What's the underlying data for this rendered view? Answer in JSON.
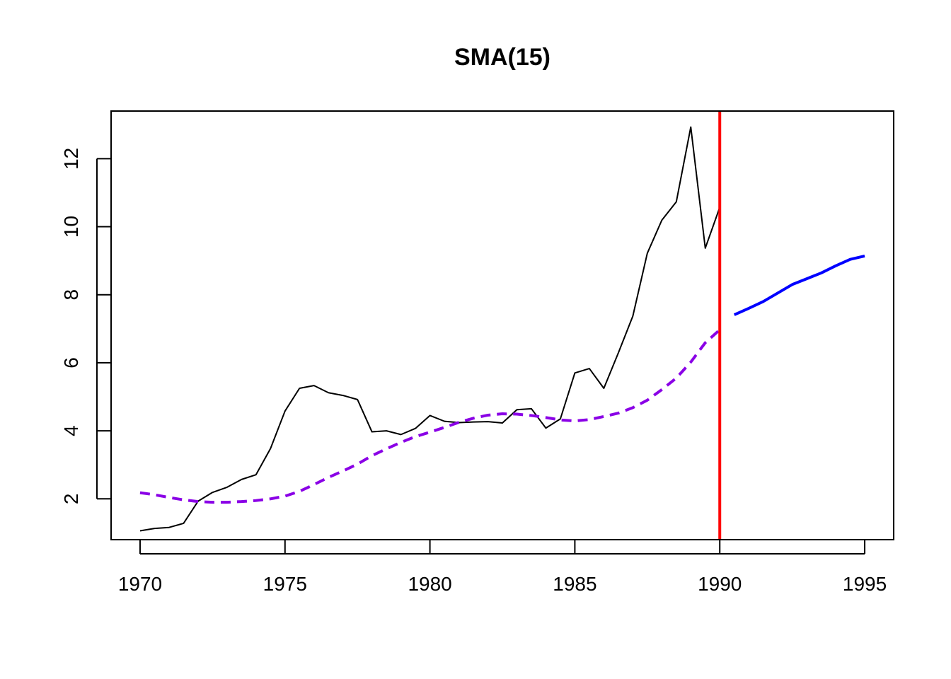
{
  "chart_data": {
    "type": "line",
    "title": "SMA(15)",
    "xlabel": "",
    "ylabel": "",
    "xlim": [
      1969,
      1996
    ],
    "ylim": [
      0.8,
      13.4
    ],
    "x_ticks": [
      1970,
      1975,
      1980,
      1985,
      1990,
      1995
    ],
    "y_ticks": [
      2,
      4,
      6,
      8,
      10,
      12
    ],
    "grid": false,
    "legend": "none",
    "vline": {
      "x": 1990,
      "color": "#ff0000"
    },
    "series": [
      {
        "style": "solid",
        "color": "#000000",
        "x": [
          1970,
          1970.5,
          1971,
          1971.5,
          1972,
          1972.5,
          1973,
          1973.5,
          1974,
          1974.5,
          1975,
          1975.5,
          1976,
          1976.5,
          1977,
          1977.5,
          1978,
          1978.5,
          1979,
          1979.5,
          1980,
          1980.5,
          1981,
          1981.5,
          1982,
          1982.5,
          1983,
          1983.5,
          1984,
          1984.5,
          1985,
          1985.5,
          1986,
          1986.5,
          1987,
          1987.5,
          1988,
          1988.5,
          1989,
          1989.5,
          1990
        ],
        "values": [
          1.06,
          1.13,
          1.16,
          1.28,
          1.93,
          2.19,
          2.34,
          2.57,
          2.71,
          3.48,
          4.58,
          5.25,
          5.33,
          5.12,
          5.04,
          4.92,
          3.97,
          4.0,
          3.89,
          4.07,
          4.45,
          4.28,
          4.24,
          4.26,
          4.27,
          4.23,
          4.62,
          4.65,
          4.08,
          4.35,
          5.7,
          5.83,
          5.25,
          6.29,
          7.37,
          9.22,
          10.19,
          10.73,
          12.93,
          9.37,
          10.57
        ]
      },
      {
        "style": "dashed",
        "color": "#8a00e6",
        "x": [
          1970,
          1970.5,
          1971,
          1971.5,
          1972,
          1972.5,
          1973,
          1973.5,
          1974,
          1974.5,
          1975,
          1975.5,
          1976,
          1976.5,
          1977,
          1977.5,
          1978,
          1978.5,
          1979,
          1979.5,
          1980,
          1980.5,
          1981,
          1981.5,
          1982,
          1982.5,
          1983,
          1983.5,
          1984,
          1984.5,
          1985,
          1985.5,
          1986,
          1986.5,
          1987,
          1987.5,
          1988,
          1988.5,
          1989,
          1989.5,
          1990
        ],
        "values": [
          2.18,
          2.12,
          2.04,
          1.97,
          1.92,
          1.9,
          1.9,
          1.92,
          1.95,
          2.0,
          2.08,
          2.22,
          2.42,
          2.63,
          2.82,
          3.02,
          3.27,
          3.47,
          3.66,
          3.83,
          3.96,
          4.1,
          4.25,
          4.37,
          4.46,
          4.5,
          4.49,
          4.45,
          4.39,
          4.32,
          4.29,
          4.33,
          4.42,
          4.52,
          4.68,
          4.9,
          5.21,
          5.55,
          6.02,
          6.59,
          6.97
        ]
      },
      {
        "style": "solid-thick",
        "color": "#0000ff",
        "x": [
          1990.5,
          1991,
          1991.5,
          1992,
          1992.5,
          1993,
          1993.5,
          1994,
          1994.5,
          1995
        ],
        "values": [
          7.41,
          7.6,
          7.8,
          8.05,
          8.3,
          8.47,
          8.64,
          8.85,
          9.04,
          9.14
        ]
      }
    ]
  }
}
